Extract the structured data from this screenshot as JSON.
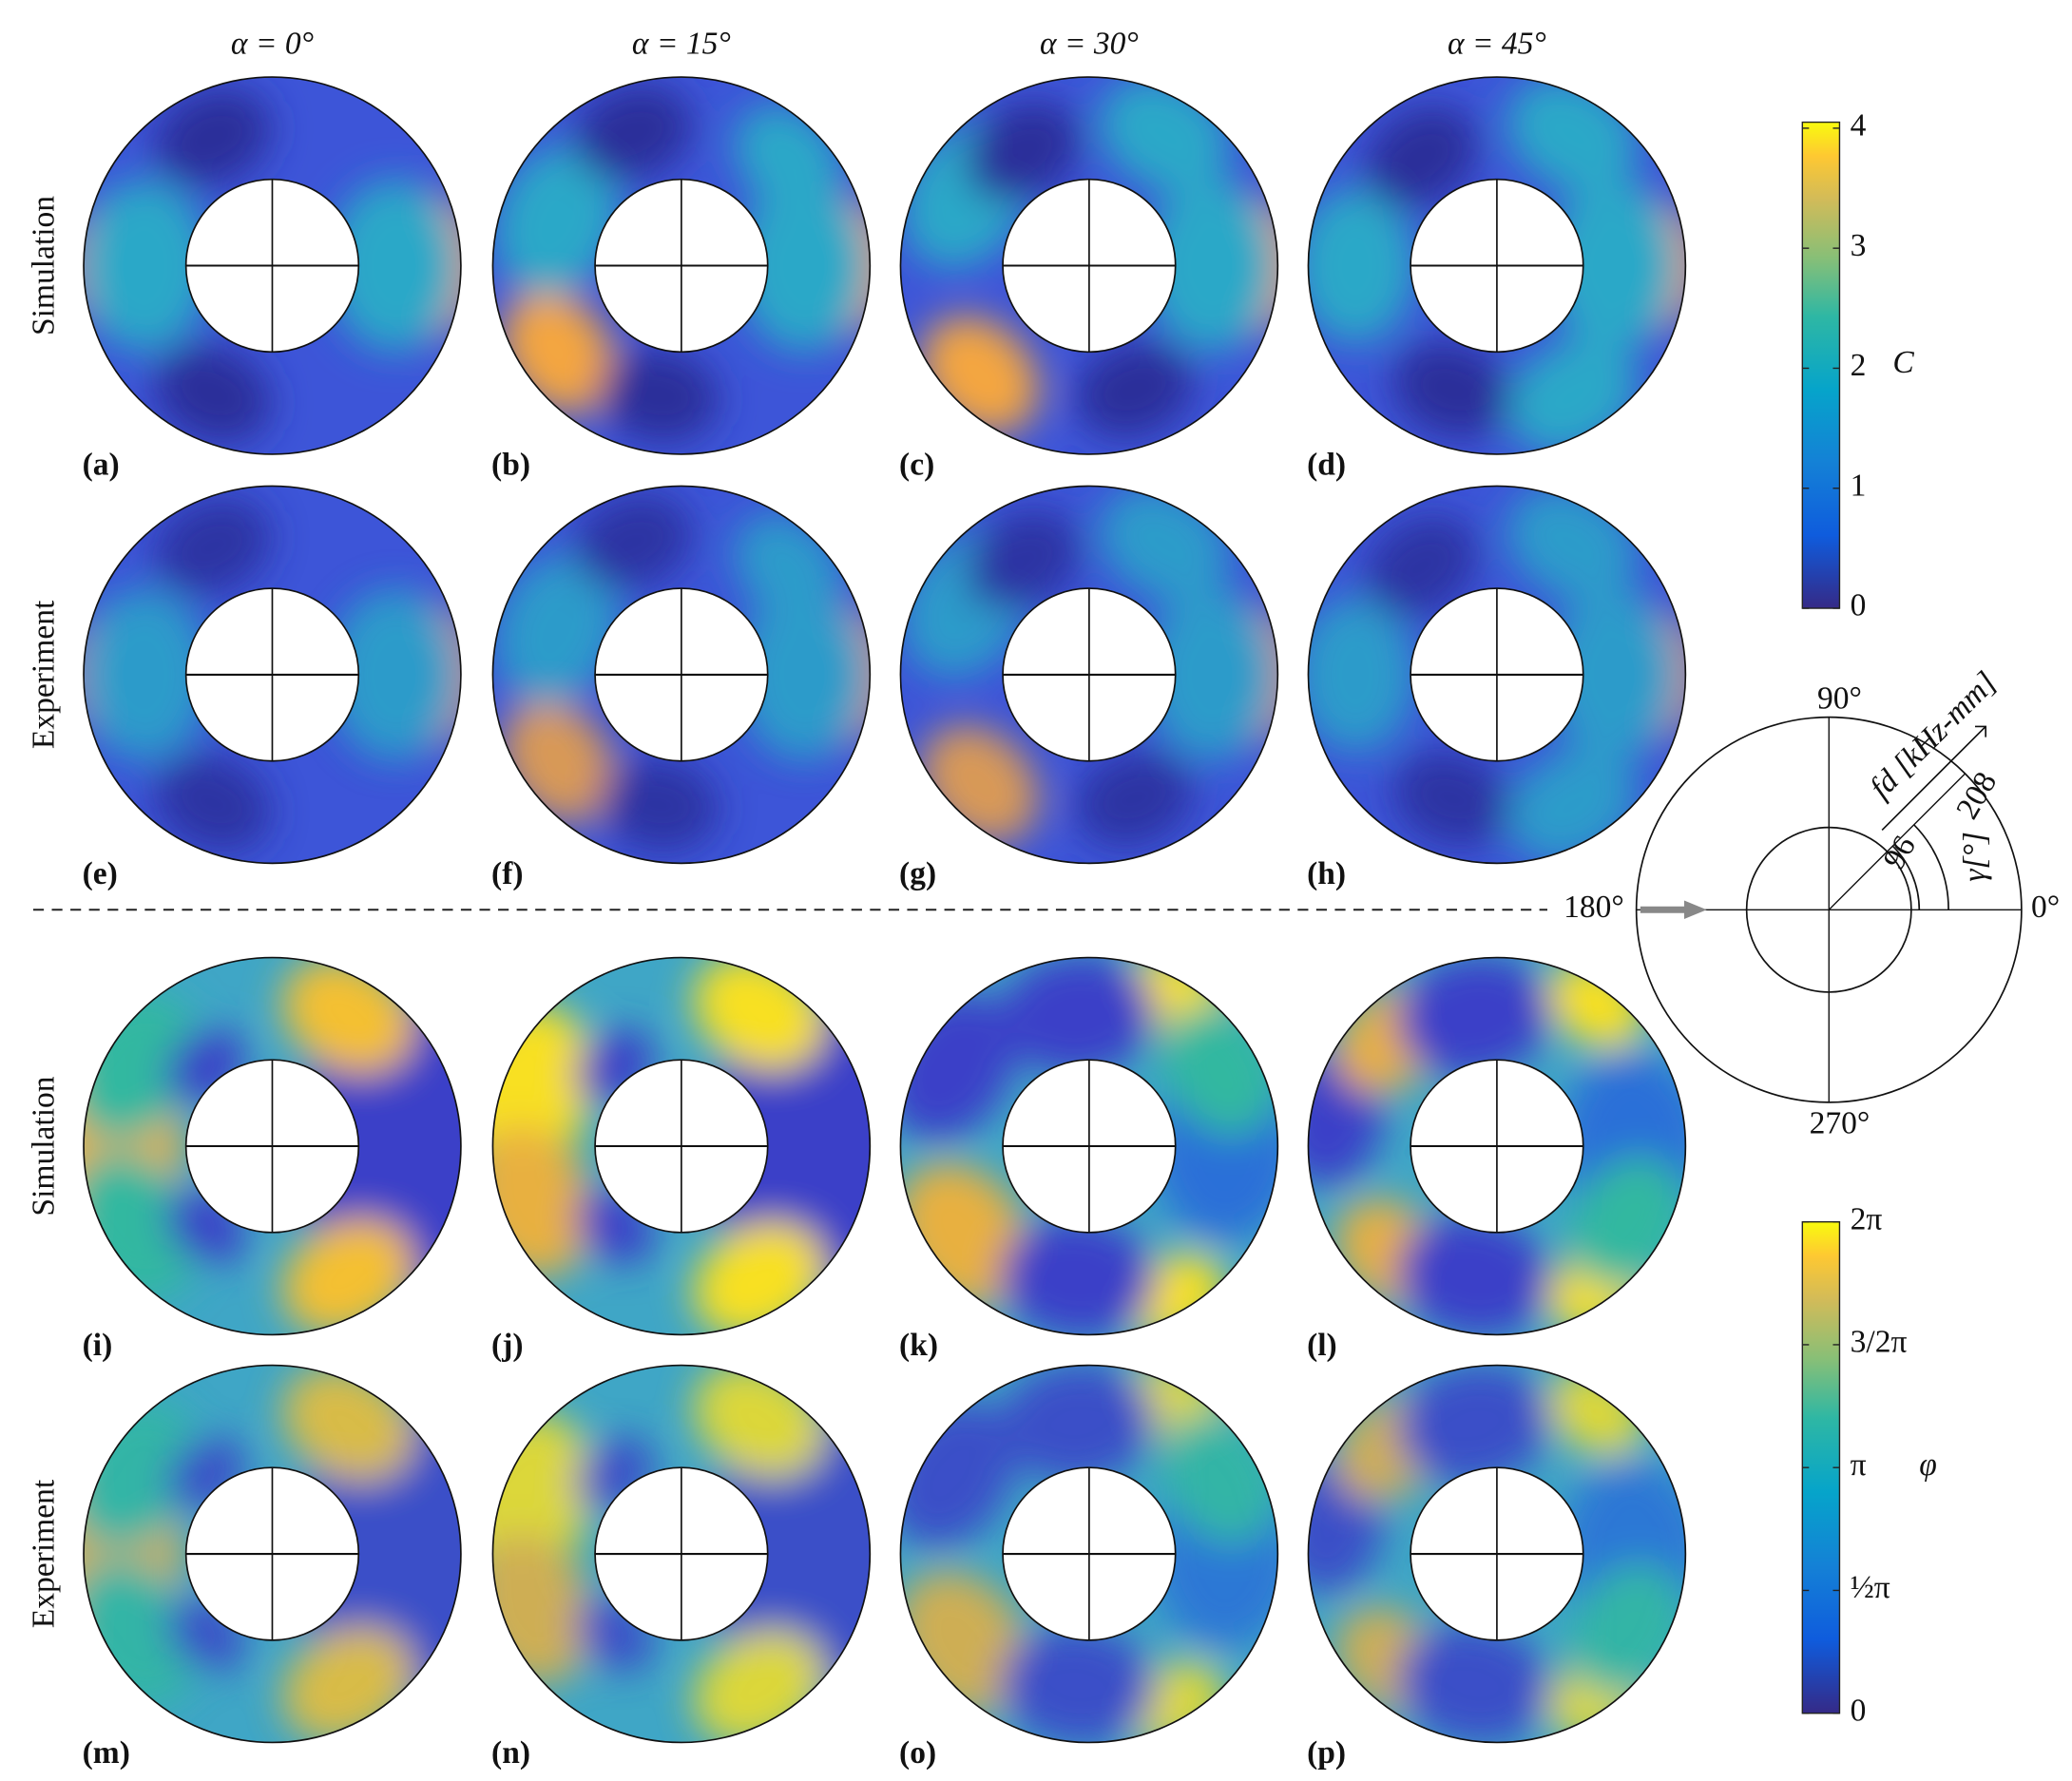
{
  "column_titles": [
    "α = 0°",
    "α = 15°",
    "α = 30°",
    "α = 45°"
  ],
  "row_labels": [
    "Simulation",
    "Experiment",
    "Simulation",
    "Experiment"
  ],
  "panel_labels": [
    "(a)",
    "(b)",
    "(c)",
    "(d)",
    "(e)",
    "(f)",
    "(g)",
    "(h)",
    "(i)",
    "(j)",
    "(k)",
    "(l)",
    "(m)",
    "(n)",
    "(o)",
    "(p)"
  ],
  "colorbar_amplitude": {
    "label": "C",
    "ylim": [
      0,
      4.05
    ],
    "yticks": [
      0,
      1,
      2,
      3,
      4
    ]
  },
  "colorbar_phase": {
    "label": "φ",
    "ylim": [
      0,
      6.2832
    ],
    "yticks": [
      0,
      {
        "value": 1.5708,
        "label": "½π"
      },
      {
        "value": 3.1416,
        "label": "π"
      },
      {
        "value": 4.7124,
        "label": "3/2π"
      },
      {
        "value": 6.2832,
        "label": "2π"
      }
    ]
  },
  "polar_legend": {
    "angle_labels": [
      "90°",
      "180°",
      "270°",
      "0°"
    ],
    "radius_labels": [
      "96",
      "208"
    ],
    "radius_axis_label": "fd [kHz-mm]",
    "angle_axis_label": "γ[°]"
  }
}
